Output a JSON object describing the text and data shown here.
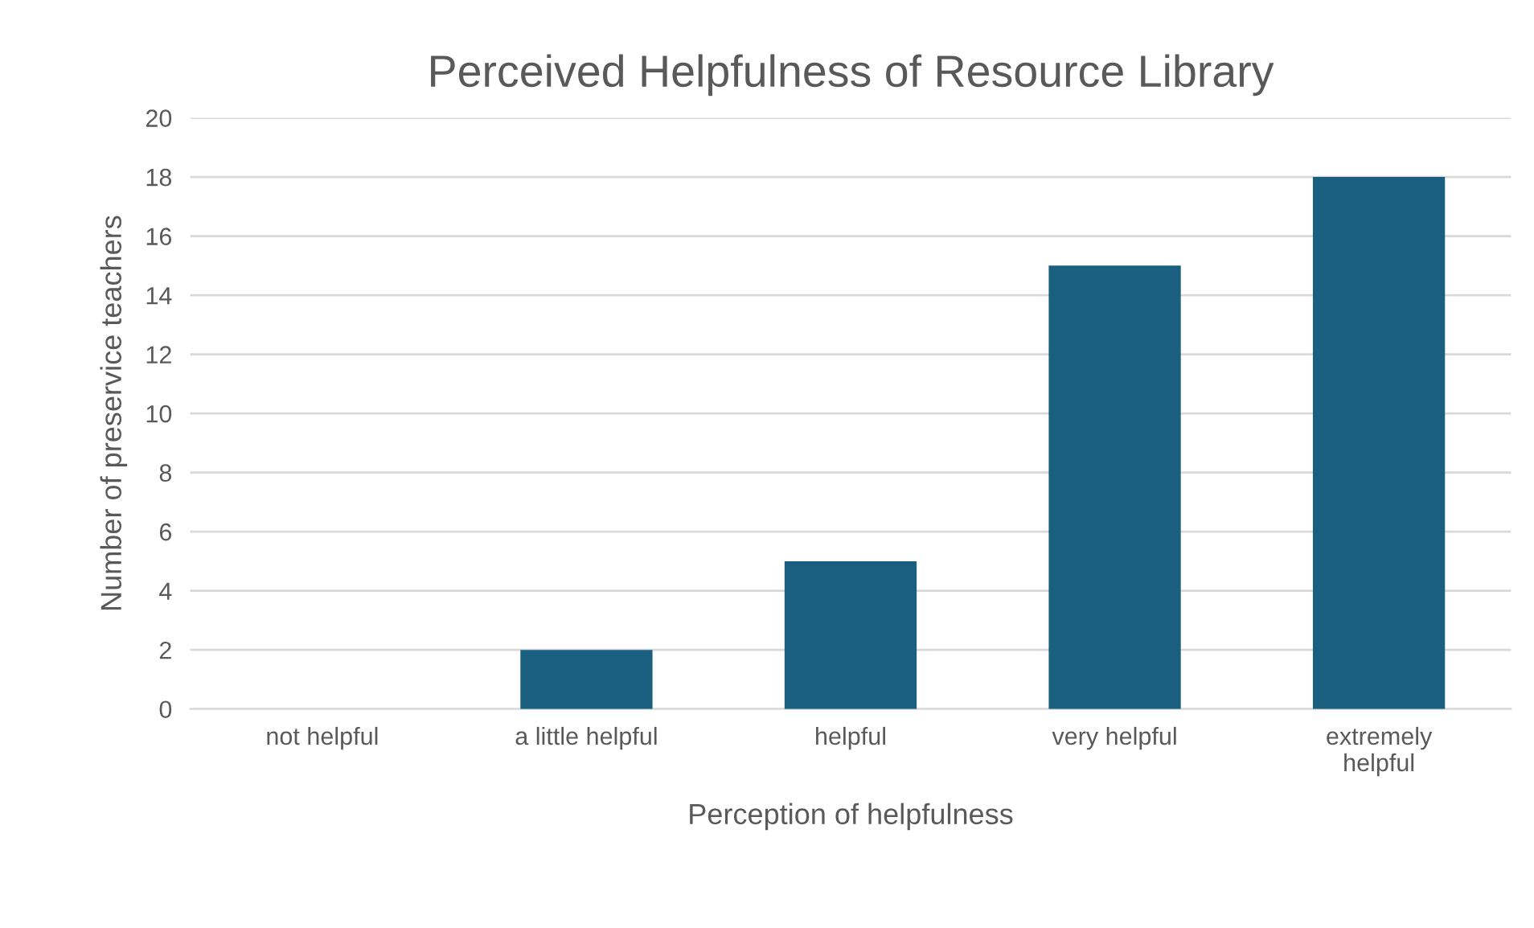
{
  "chart_data": {
    "type": "bar",
    "title": "Perceived Helpfulness of Resource Library",
    "xlabel": "Perception of helpfulness",
    "ylabel": "Number of preservice teachers",
    "categories": [
      "not helpful",
      "a little helpful",
      "helpful",
      "very helpful",
      "extremely\nhelpful"
    ],
    "values": [
      0,
      2,
      5,
      15,
      18
    ],
    "color": "#1a5e80",
    "ylim": [
      0,
      20
    ],
    "yticks": [
      0,
      2,
      4,
      6,
      8,
      10,
      12,
      14,
      16,
      18,
      20
    ],
    "grid": "y",
    "legend": false
  }
}
